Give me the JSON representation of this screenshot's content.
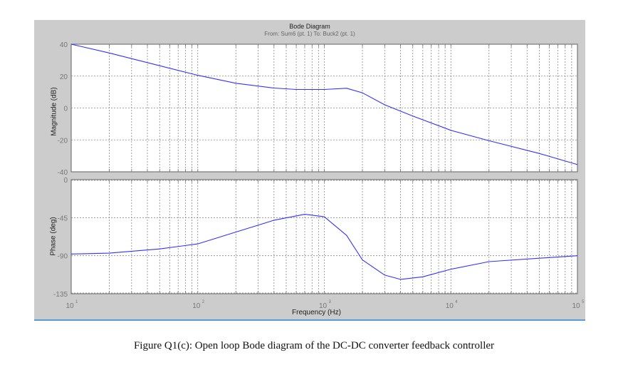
{
  "figure": {
    "title": "Bode Diagram",
    "subtitle": "From: Sum6 (pt. 1)  To: Buck2 (pt. 1)",
    "xlabel": "Frequency  (Hz)",
    "magnitude_ylabel": "Magnitude (dB)",
    "phase_ylabel": "Phase (deg)",
    "line_color": "#3333ff",
    "background_color": "#cccccc"
  },
  "caption": "Figure Q1(c): Open loop Bode diagram of the DC-DC converter feedback controller",
  "chart_data": [
    {
      "type": "line",
      "title": "Bode Diagram",
      "subtitle": "From: Sum6 (pt. 1)  To: Buck2 (pt. 1)",
      "xlabel": "Frequency  (Hz)",
      "ylabel": "Magnitude (dB)",
      "xscale": "log",
      "xlim": [
        10,
        100000
      ],
      "ylim": [
        -40,
        40
      ],
      "yticks": [
        -40,
        -20,
        0,
        20,
        40
      ],
      "xticks": [
        "10^1",
        "10^2",
        "10^3",
        "10^4",
        "10^5"
      ],
      "grid": true,
      "series": [
        {
          "name": "Magnitude",
          "x": [
            10,
            20,
            50,
            100,
            200,
            400,
            600,
            1000,
            1500,
            2000,
            3000,
            5000,
            10000,
            20000,
            50000,
            100000
          ],
          "values": [
            40,
            34.5,
            26.5,
            20.5,
            15.5,
            12.5,
            11.6,
            11.6,
            12.4,
            9.5,
            2,
            -5,
            -14,
            -20.5,
            -28.5,
            -35.5
          ]
        }
      ]
    },
    {
      "type": "line",
      "xlabel": "Frequency  (Hz)",
      "ylabel": "Phase (deg)",
      "xscale": "log",
      "xlim": [
        10,
        100000
      ],
      "ylim": [
        -135,
        0
      ],
      "yticks": [
        -135,
        -90,
        -45,
        0
      ],
      "xticks": [
        "10^1",
        "10^2",
        "10^3",
        "10^4",
        "10^5"
      ],
      "grid": true,
      "series": [
        {
          "name": "Phase",
          "x": [
            10,
            20,
            50,
            100,
            200,
            400,
            700,
            1000,
            1500,
            2000,
            3000,
            4000,
            6000,
            10000,
            20000,
            50000,
            100000
          ],
          "values": [
            -88,
            -87,
            -82,
            -76,
            -62,
            -48,
            -41,
            -44,
            -66,
            -95,
            -113,
            -118,
            -115,
            -106,
            -97,
            -93,
            -90
          ]
        }
      ]
    }
  ]
}
